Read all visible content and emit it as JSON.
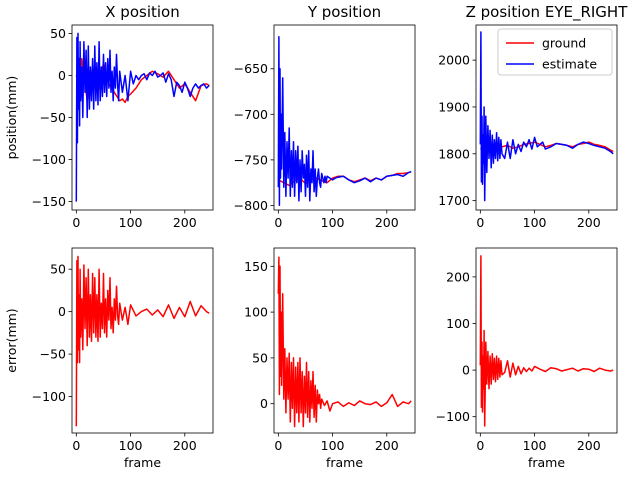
{
  "chart_data": [
    {
      "type": "line",
      "title": "X position",
      "xlabel": "",
      "ylabel": "position(mm)",
      "xlim": [
        -8,
        252
      ],
      "ylim": [
        -160,
        60
      ],
      "xticks": [
        0,
        100,
        200
      ],
      "yticks": [
        -150,
        -100,
        -50,
        0,
        50
      ],
      "series": [
        {
          "name": "ground",
          "color": "#ff0000",
          "x": [
            0,
            5,
            10,
            20,
            30,
            40,
            50,
            60,
            70,
            75,
            80,
            85,
            90,
            95,
            100,
            110,
            120,
            130,
            140,
            150,
            160,
            170,
            180,
            190,
            200,
            210,
            220,
            230,
            240,
            245
          ],
          "y": [
            0,
            -10,
            20,
            -30,
            10,
            -20,
            15,
            -10,
            -20,
            -25,
            -30,
            -28,
            -32,
            -25,
            -22,
            -15,
            -5,
            0,
            5,
            2,
            -2,
            5,
            -5,
            -15,
            -10,
            -20,
            -30,
            -12,
            -10,
            -12
          ]
        },
        {
          "name": "estimate",
          "color": "#0000ff",
          "x": [
            0,
            1,
            2,
            3,
            4,
            5,
            6,
            7,
            8,
            10,
            12,
            14,
            16,
            18,
            20,
            22,
            24,
            26,
            28,
            30,
            32,
            34,
            36,
            38,
            40,
            42,
            44,
            46,
            48,
            50,
            52,
            54,
            56,
            58,
            60,
            62,
            64,
            66,
            68,
            70,
            72,
            74,
            76,
            78,
            80,
            85,
            90,
            95,
            100,
            105,
            110,
            115,
            120,
            125,
            130,
            135,
            140,
            145,
            150,
            155,
            160,
            165,
            170,
            175,
            180,
            185,
            190,
            195,
            200,
            205,
            210,
            215,
            220,
            225,
            230,
            235,
            240,
            245
          ],
          "y": [
            -150,
            45,
            -80,
            50,
            -40,
            20,
            -60,
            40,
            -30,
            10,
            -50,
            40,
            -20,
            30,
            -50,
            35,
            -40,
            10,
            -30,
            20,
            -40,
            35,
            -30,
            15,
            -35,
            40,
            -30,
            10,
            -25,
            25,
            -20,
            15,
            -25,
            20,
            -15,
            30,
            -20,
            5,
            -30,
            10,
            -15,
            25,
            -10,
            -30,
            5,
            -20,
            0,
            -30,
            5,
            -10,
            0,
            -5,
            0,
            2,
            -5,
            3,
            0,
            5,
            -2,
            0,
            3,
            -8,
            2,
            -5,
            -25,
            -8,
            -12,
            -20,
            -8,
            -15,
            -25,
            -15,
            -10,
            -15,
            -12,
            -10,
            -15,
            -12
          ]
        }
      ]
    },
    {
      "type": "line",
      "title": "Y position",
      "xlabel": "",
      "ylabel": "",
      "xlim": [
        -8,
        252
      ],
      "ylim": [
        -805,
        -602
      ],
      "xticks": [
        0,
        100,
        200
      ],
      "yticks": [
        -800,
        -750,
        -700,
        -650
      ],
      "series": [
        {
          "name": "ground",
          "color": "#ff0000",
          "x": [
            0,
            10,
            20,
            30,
            40,
            50,
            60,
            70,
            80,
            90,
            100,
            110,
            120,
            130,
            140,
            150,
            160,
            170,
            180,
            190,
            200,
            210,
            220,
            230,
            240,
            245
          ],
          "y": [
            -772,
            -775,
            -778,
            -773,
            -770,
            -776,
            -772,
            -770,
            -773,
            -775,
            -770,
            -768,
            -768,
            -772,
            -774,
            -772,
            -770,
            -773,
            -770,
            -772,
            -768,
            -767,
            -765,
            -765,
            -764,
            -763
          ]
        },
        {
          "name": "estimate",
          "color": "#0000ff",
          "x": [
            0,
            1,
            2,
            3,
            4,
            5,
            6,
            8,
            10,
            12,
            14,
            16,
            18,
            20,
            22,
            24,
            26,
            28,
            30,
            32,
            34,
            36,
            38,
            40,
            42,
            44,
            46,
            48,
            50,
            52,
            54,
            56,
            58,
            60,
            62,
            64,
            66,
            68,
            70,
            72,
            74,
            76,
            78,
            80,
            82,
            84,
            86,
            88,
            90,
            95,
            100,
            105,
            110,
            120,
            130,
            140,
            150,
            160,
            170,
            180,
            190,
            200,
            210,
            220,
            230,
            240,
            245
          ],
          "y": [
            -780,
            -615,
            -800,
            -650,
            -770,
            -700,
            -760,
            -660,
            -780,
            -720,
            -790,
            -730,
            -770,
            -715,
            -790,
            -740,
            -780,
            -730,
            -790,
            -740,
            -775,
            -735,
            -795,
            -750,
            -785,
            -740,
            -770,
            -755,
            -790,
            -745,
            -780,
            -740,
            -795,
            -760,
            -775,
            -740,
            -785,
            -760,
            -790,
            -770,
            -760,
            -775,
            -780,
            -765,
            -770,
            -775,
            -768,
            -775,
            -768,
            -770,
            -772,
            -770,
            -769,
            -768,
            -772,
            -775,
            -773,
            -770,
            -774,
            -770,
            -772,
            -768,
            -767,
            -766,
            -768,
            -764,
            -763
          ]
        }
      ]
    },
    {
      "type": "line",
      "title": "Z position EYE_RIGHT",
      "xlabel": "",
      "ylabel": "",
      "xlim": [
        -8,
        252
      ],
      "ylim": [
        1680,
        2075
      ],
      "xticks": [
        0,
        100,
        200
      ],
      "yticks": [
        1700,
        1800,
        1900,
        2000
      ],
      "legend": {
        "placement": "top-right"
      },
      "series": [
        {
          "name": "ground",
          "color": "#ff0000",
          "x": [
            0,
            10,
            20,
            30,
            40,
            50,
            60,
            70,
            80,
            90,
            100,
            110,
            120,
            130,
            140,
            150,
            160,
            170,
            180,
            190,
            200,
            210,
            220,
            230,
            240,
            245
          ],
          "y": [
            1810,
            1815,
            1812,
            1808,
            1815,
            1818,
            1812,
            1815,
            1820,
            1822,
            1825,
            1820,
            1815,
            1818,
            1822,
            1820,
            1818,
            1815,
            1820,
            1822,
            1825,
            1820,
            1818,
            1815,
            1808,
            1805
          ]
        },
        {
          "name": "estimate",
          "color": "#0000ff",
          "x": [
            0,
            1,
            2,
            3,
            4,
            5,
            6,
            7,
            8,
            10,
            12,
            14,
            16,
            18,
            20,
            22,
            24,
            26,
            28,
            30,
            32,
            34,
            36,
            38,
            40,
            45,
            50,
            55,
            60,
            65,
            70,
            75,
            80,
            85,
            90,
            95,
            100,
            105,
            110,
            115,
            120,
            130,
            140,
            150,
            160,
            170,
            180,
            190,
            200,
            210,
            220,
            230,
            240,
            245
          ],
          "y": [
            1820,
            2060,
            1740,
            1880,
            1735,
            1840,
            1780,
            1900,
            1700,
            1880,
            1760,
            1860,
            1790,
            1850,
            1770,
            1840,
            1780,
            1830,
            1790,
            1845,
            1785,
            1835,
            1790,
            1830,
            1800,
            1790,
            1825,
            1790,
            1830,
            1800,
            1820,
            1805,
            1825,
            1815,
            1830,
            1810,
            1835,
            1815,
            1820,
            1825,
            1810,
            1815,
            1822,
            1820,
            1818,
            1812,
            1820,
            1825,
            1822,
            1818,
            1815,
            1812,
            1805,
            1800
          ]
        }
      ]
    },
    {
      "type": "line",
      "title": "",
      "xlabel": "frame",
      "ylabel": "error(mm)",
      "xlim": [
        -8,
        252
      ],
      "ylim": [
        -143,
        75
      ],
      "xticks": [
        0,
        100,
        200
      ],
      "yticks": [
        -100,
        -50,
        0,
        50
      ],
      "series": [
        {
          "name": "",
          "color": "#ff0000",
          "x": [
            0,
            1,
            2,
            3,
            4,
            5,
            6,
            7,
            8,
            10,
            12,
            14,
            16,
            18,
            20,
            22,
            24,
            26,
            28,
            30,
            32,
            34,
            36,
            38,
            40,
            42,
            44,
            46,
            48,
            50,
            52,
            54,
            56,
            58,
            60,
            62,
            64,
            66,
            68,
            70,
            72,
            74,
            76,
            78,
            80,
            85,
            90,
            95,
            100,
            110,
            120,
            130,
            140,
            150,
            160,
            170,
            180,
            190,
            200,
            210,
            220,
            230,
            240,
            245
          ],
          "y": [
            -135,
            60,
            -60,
            65,
            -45,
            20,
            -60,
            50,
            -30,
            15,
            -45,
            55,
            -20,
            40,
            -40,
            50,
            -30,
            20,
            -35,
            45,
            -25,
            40,
            -30,
            20,
            -35,
            50,
            -30,
            10,
            -20,
            45,
            -25,
            15,
            -30,
            25,
            -10,
            40,
            -20,
            5,
            -25,
            15,
            -10,
            30,
            -5,
            -15,
            10,
            -10,
            5,
            -15,
            8,
            -5,
            0,
            3,
            -4,
            2,
            -6,
            8,
            -8,
            5,
            -6,
            12,
            -5,
            7,
            0,
            -2
          ]
        }
      ]
    },
    {
      "type": "line",
      "title": "",
      "xlabel": "frame",
      "ylabel": "",
      "xlim": [
        -8,
        252
      ],
      "ylim": [
        -32,
        170
      ],
      "xticks": [
        0,
        100,
        200
      ],
      "yticks": [
        0,
        50,
        100,
        150
      ],
      "series": [
        {
          "name": "",
          "color": "#ff0000",
          "x": [
            0,
            1,
            2,
            3,
            4,
            5,
            6,
            8,
            10,
            12,
            14,
            16,
            18,
            20,
            22,
            24,
            26,
            28,
            30,
            32,
            34,
            36,
            38,
            40,
            42,
            44,
            46,
            48,
            50,
            52,
            54,
            56,
            58,
            60,
            62,
            64,
            66,
            68,
            70,
            72,
            74,
            76,
            78,
            80,
            85,
            90,
            95,
            100,
            110,
            120,
            130,
            140,
            150,
            160,
            170,
            180,
            190,
            200,
            210,
            220,
            230,
            240,
            245
          ],
          "y": [
            120,
            160,
            10,
            150,
            30,
            100,
            20,
            120,
            5,
            60,
            -10,
            50,
            5,
            55,
            -20,
            45,
            -5,
            50,
            -25,
            40,
            -10,
            45,
            -20,
            50,
            -10,
            35,
            -25,
            30,
            -10,
            45,
            -15,
            35,
            -20,
            25,
            -5,
            35,
            -15,
            20,
            -20,
            15,
            0,
            10,
            -5,
            5,
            -2,
            3,
            -8,
            0,
            2,
            -3,
            1,
            -2,
            3,
            0,
            -1,
            2,
            -3,
            1,
            10,
            -3,
            2,
            0,
            3
          ]
        }
      ]
    },
    {
      "type": "line",
      "title": "",
      "xlabel": "frame",
      "ylabel": "",
      "xlim": [
        -8,
        252
      ],
      "ylim": [
        -135,
        262
      ],
      "xticks": [
        0,
        100,
        200
      ],
      "yticks": [
        -100,
        0,
        100,
        200
      ],
      "series": [
        {
          "name": "",
          "color": "#ff0000",
          "x": [
            0,
            1,
            2,
            3,
            4,
            5,
            6,
            7,
            8,
            10,
            12,
            14,
            16,
            18,
            20,
            22,
            24,
            26,
            28,
            30,
            32,
            34,
            36,
            38,
            40,
            45,
            50,
            55,
            60,
            65,
            70,
            75,
            80,
            85,
            90,
            95,
            100,
            110,
            120,
            130,
            140,
            150,
            160,
            170,
            180,
            190,
            200,
            210,
            220,
            230,
            240,
            245
          ],
          "y": [
            10,
            245,
            -80,
            60,
            -90,
            30,
            -40,
            85,
            -120,
            60,
            -30,
            40,
            -40,
            30,
            -30,
            35,
            -20,
            25,
            -25,
            30,
            -20,
            25,
            -15,
            20,
            -10,
            -5,
            20,
            -15,
            15,
            -10,
            8,
            -8,
            5,
            -3,
            4,
            -2,
            8,
            2,
            -3,
            5,
            3,
            -2,
            1,
            4,
            -2,
            3,
            2,
            -3,
            4,
            0,
            -2,
            0
          ]
        }
      ]
    }
  ]
}
